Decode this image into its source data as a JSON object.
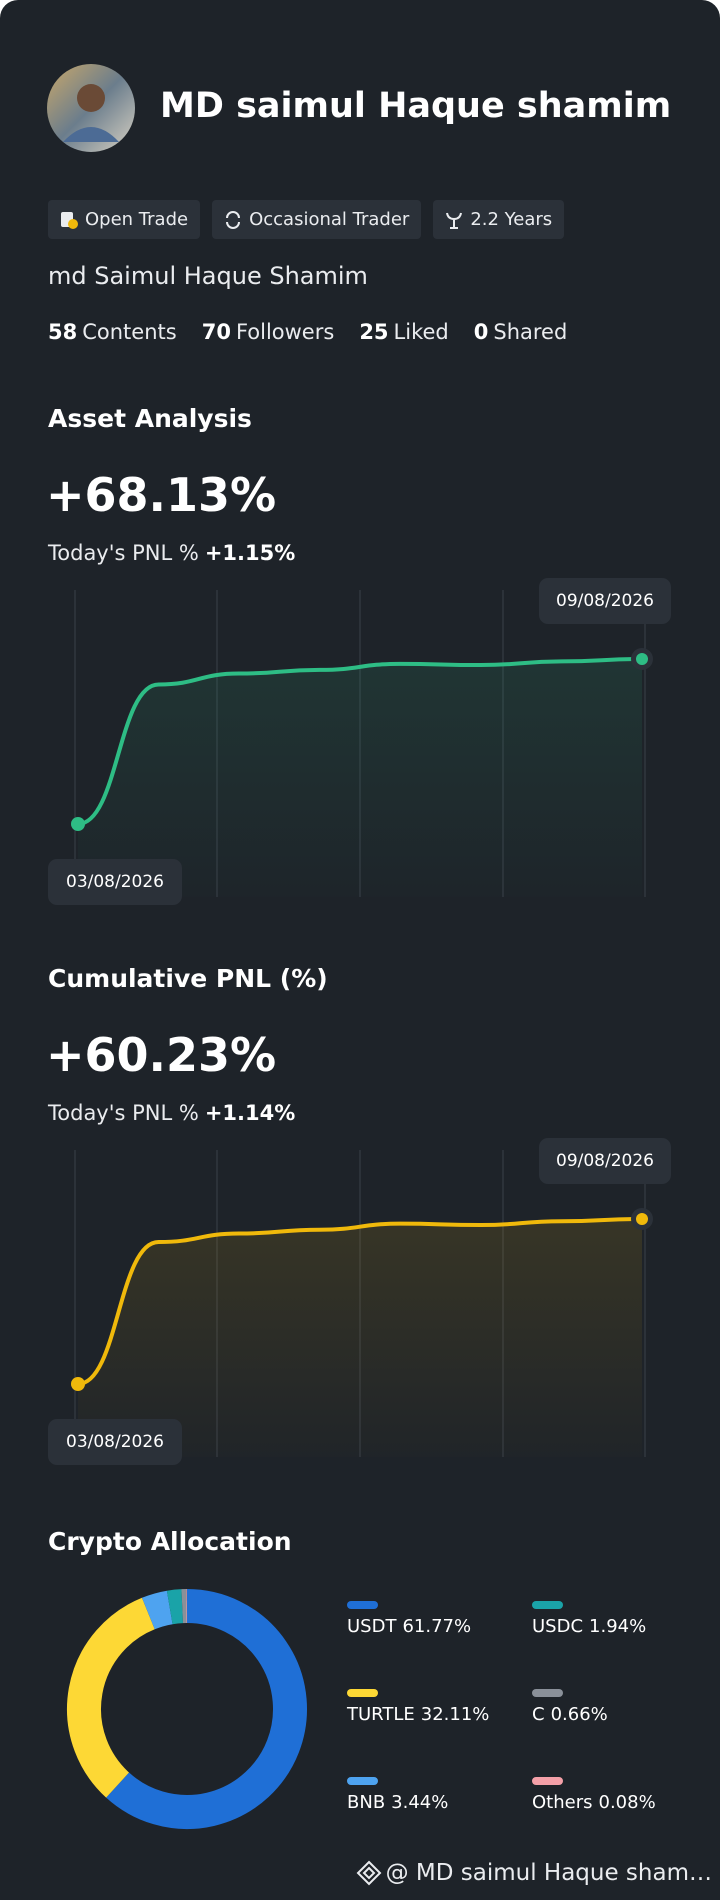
{
  "profile": {
    "name": "MD saimul Haque shamim",
    "tags": [
      "Open Trade",
      "Occasional Trader",
      "2.2 Years"
    ],
    "display_name": "md Saimul Haque Shamim",
    "stats": [
      {
        "count": 58,
        "label": "Contents"
      },
      {
        "count": 70,
        "label": "Followers"
      },
      {
        "count": 25,
        "label": "Liked"
      },
      {
        "count": 0,
        "label": "Shared"
      }
    ]
  },
  "asset_analysis": {
    "title": "Asset Analysis",
    "value": "+68.13%",
    "today_label": "Today's PNL %",
    "today_value": "+1.15%",
    "chart": {
      "type": "line",
      "color": "#2ebd85",
      "values": [
        0,
        57.6,
        62.1,
        63.6,
        66.1,
        65.6,
        67.1,
        68.1
      ],
      "start_date": "03/08/2026",
      "end_date": "09/08/2026"
    }
  },
  "cumulative_pnl": {
    "title": "Cumulative PNL (%)",
    "value": "+60.23%",
    "today_label": "Today's PNL %",
    "today_value": "+1.14%",
    "chart": {
      "type": "line",
      "color": "#f0b90b",
      "values": [
        0,
        51.8,
        54.9,
        56.3,
        58.5,
        58.0,
        59.4,
        60.2
      ],
      "start_date": "03/08/2026",
      "end_date": "09/08/2026"
    }
  },
  "crypto_allocation": {
    "title": "Crypto Allocation",
    "chart": {
      "type": "pie",
      "names": [
        "USDT",
        "TURTLE",
        "BNB",
        "USDC",
        "C",
        "Others"
      ],
      "colors": [
        "#1f6fd6",
        "#fdd835",
        "#4ea3f0",
        "#1aa3a8",
        "#8a9099",
        "#f4a0a8"
      ],
      "values": [
        61.77,
        32.11,
        3.44,
        1.94,
        0.66,
        0.08
      ],
      "value_labels": [
        "61.77%",
        "32.11%",
        "3.44%",
        "1.94%",
        "0.66%",
        "0.08%"
      ]
    }
  },
  "footer": {
    "text": "@ MD saimul Haque sham…"
  }
}
